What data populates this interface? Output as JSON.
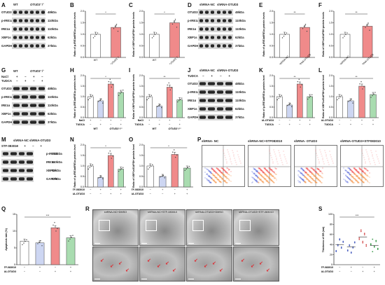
{
  "panel_letters": [
    "A",
    "B",
    "C",
    "D",
    "E",
    "F",
    "G",
    "H",
    "I",
    "J",
    "K",
    "L",
    "M",
    "N",
    "O",
    "P",
    "Q",
    "R",
    "S"
  ],
  "blots": {
    "A": {
      "headers": [
        "WT",
        "OTUD3⁻/⁻"
      ],
      "proteins": [
        "OTUD3",
        "p-IRE1α",
        "IRE1α",
        "XBP1s",
        "GAPDH"
      ],
      "kda": [
        "48kDa",
        "110kDa",
        "110kDa",
        "62kDa",
        "37kDa"
      ]
    },
    "D": {
      "headers": [
        "shRNA-NC",
        "shRNA-OTUD3"
      ],
      "proteins": [
        "OTUD3",
        "p-IRE1α",
        "IRE1α",
        "XBP1s",
        "GAPDH"
      ],
      "kda": [
        "48kDa",
        "110kDa",
        "110kDa",
        "62kDa",
        "37kDa"
      ]
    },
    "G": {
      "headers": [
        "WT",
        "OTUD3⁻/⁻"
      ],
      "cond_rows": [
        {
          "label": "NaCl",
          "values": [
            "+",
            "−",
            "+",
            "−"
          ]
        },
        {
          "label": "TUDCA",
          "values": [
            "−",
            "+",
            "−",
            "+"
          ]
        }
      ],
      "proteins": [
        "OTUD3",
        "p-IRE1α",
        "IRE1α",
        "XBP1s",
        "GAPDH"
      ],
      "kda": [
        "48kDa",
        "110kDa",
        "110kDa",
        "62kDa",
        "37kDa"
      ]
    },
    "J": {
      "headers": [
        "shRNA-NC",
        "shRNA-OTUD3"
      ],
      "cond_rows": [
        {
          "label": "TUDCA",
          "values": [
            "−",
            "+",
            "−",
            "+"
          ]
        }
      ],
      "proteins": [
        "OTUD3",
        "p-IRE1α",
        "IRE1α",
        "XBP1s",
        "GAPDH"
      ],
      "kda": [
        "48kDa",
        "110kDa",
        "110kDa",
        "62kDa",
        "37kDa"
      ]
    },
    "M": {
      "headers": [
        "shRNA-NC",
        "shRNA-OTUD3"
      ],
      "cond_rows": [
        {
          "label": "STF-083010",
          "values": [
            "−",
            "+",
            "−",
            "+"
          ]
        }
      ],
      "proteins": [
        "p-IRE1α",
        "IRE1α",
        "XBP1s",
        "GAPDH"
      ],
      "kda": [
        "110kDa",
        "110kDa",
        "62kDa",
        "37kDa"
      ]
    }
  },
  "chart_data": [
    {
      "id": "B",
      "type": "bar",
      "ylabel": "Ratio of p-IRE1α/IRE1α protein levels",
      "categories": [
        "WT",
        "OTUD3⁻/⁻"
      ],
      "values": [
        1.0,
        1.3
      ],
      "ylim": [
        0,
        2.0
      ],
      "yticks": [
        "0.0",
        "0.5",
        "1.0",
        "1.5",
        "2.0"
      ],
      "colors": [
        "#ffffff",
        "#f08a8a"
      ],
      "sig": "*",
      "cond_rows": []
    },
    {
      "id": "C",
      "type": "bar",
      "ylabel": "Ratio of XBP1s/GAPDH protein levels",
      "categories": [
        "WT",
        "OTUD3⁻/⁻"
      ],
      "values": [
        1.0,
        1.5
      ],
      "ylim": [
        0,
        2.0
      ],
      "yticks": [
        "0.0",
        "0.5",
        "1.0",
        "1.5",
        "2.0"
      ],
      "colors": [
        "#ffffff",
        "#f08a8a"
      ],
      "sig": "*",
      "cond_rows": []
    },
    {
      "id": "E",
      "type": "bar",
      "ylabel": "Ratio of p-IRE1α/IRE1α protein levels",
      "categories": [
        "shRNA-NC",
        "shRNA-OTUD3"
      ],
      "values": [
        1.0,
        1.3
      ],
      "ylim": [
        0,
        2.0
      ],
      "yticks": [
        "0.0",
        "0.5",
        "1.0",
        "1.5",
        "2.0"
      ],
      "colors": [
        "#ffffff",
        "#f08a8a"
      ],
      "sig": "**",
      "cond_rows": []
    },
    {
      "id": "F",
      "type": "bar",
      "ylabel": "Ratio of XBP1s/GAPDH protein levels",
      "categories": [
        "shRNA-NC",
        "shRNA-OTUD3"
      ],
      "values": [
        1.0,
        1.35
      ],
      "ylim": [
        0,
        2.0
      ],
      "yticks": [
        "0.0",
        "0.5",
        "1.0",
        "1.5",
        "2.0"
      ],
      "colors": [
        "#ffffff",
        "#f08a8a"
      ],
      "sig": "**",
      "cond_rows": []
    },
    {
      "id": "H",
      "type": "bar",
      "ylabel": "Ratio of p-IRE1α/IRE1α protein level",
      "categories": [
        "",
        "",
        "",
        ""
      ],
      "values": [
        1.0,
        0.8,
        1.6,
        1.2
      ],
      "ylim": [
        0,
        2.0
      ],
      "yticks": [
        "0.0",
        "0.5",
        "1.0",
        "1.5",
        "2.0"
      ],
      "colors": [
        "#ffffff",
        "#cdd6f2",
        "#f08a8a",
        "#a9dcb0"
      ],
      "sig": "*",
      "cond_rows": [
        {
          "label": "NaCl",
          "values": [
            "+",
            "−",
            "+",
            "−"
          ]
        },
        {
          "label": "TUDCA",
          "values": [
            "−",
            "+",
            "−",
            "+"
          ]
        }
      ],
      "group_labels": [
        "WT",
        "OTUD3⁻/⁻"
      ]
    },
    {
      "id": "I",
      "type": "bar",
      "ylabel": "Ratio of XBP1s/GAPDH protein levels",
      "categories": [
        "",
        "",
        "",
        ""
      ],
      "values": [
        1.0,
        0.55,
        1.45,
        0.85
      ],
      "ylim": [
        0,
        2.0
      ],
      "yticks": [
        "0.0",
        "0.5",
        "1.0",
        "1.5",
        "2.0"
      ],
      "colors": [
        "#ffffff",
        "#cdd6f2",
        "#f08a8a",
        "#a9dcb0"
      ],
      "sig": "**",
      "cond_rows": [
        {
          "label": "NaCl",
          "values": [
            "+",
            "−",
            "+",
            "−"
          ]
        },
        {
          "label": "TUDCA",
          "values": [
            "−",
            "+",
            "−",
            "+"
          ]
        }
      ],
      "group_labels": [
        "WT",
        "OTUD3⁻/⁻"
      ]
    },
    {
      "id": "K",
      "type": "bar",
      "ylabel": "Ratio of p-IRE1α/IRE1α protein level",
      "categories": [
        "",
        "",
        "",
        ""
      ],
      "values": [
        1.0,
        0.6,
        1.6,
        1.0
      ],
      "ylim": [
        0,
        2.0
      ],
      "yticks": [
        "0.0",
        "0.5",
        "1.0",
        "1.5",
        "2.0"
      ],
      "colors": [
        "#ffffff",
        "#cdd6f2",
        "#f08a8a",
        "#a9dcb0"
      ],
      "sig": "**",
      "cond_rows": [
        {
          "label": "shRNA-OTUD3",
          "values": [
            "−",
            "−",
            "+",
            "+"
          ]
        },
        {
          "label": "TUDCA",
          "values": [
            "−",
            "+",
            "−",
            "+"
          ]
        }
      ]
    },
    {
      "id": "L",
      "type": "bar",
      "ylabel": "Ratio of XBP1s/GAPDH protein level",
      "categories": [
        "",
        "",
        "",
        ""
      ],
      "values": [
        1.0,
        0.8,
        1.5,
        1.1
      ],
      "ylim": [
        0,
        2.0
      ],
      "yticks": [
        "0.0",
        "0.5",
        "1.0",
        "1.5",
        "2.0"
      ],
      "colors": [
        "#ffffff",
        "#cdd6f2",
        "#f08a8a",
        "#a9dcb0"
      ],
      "sig": "**",
      "cond_rows": [
        {
          "label": "shRNA-OTUD3",
          "values": [
            "−",
            "−",
            "+",
            "+"
          ]
        },
        {
          "label": "TUDCA",
          "values": [
            "−",
            "+",
            "−",
            "+"
          ]
        }
      ]
    },
    {
      "id": "N",
      "type": "bar",
      "ylabel": "Ratio of p-IRE1α/IRE1α protein level",
      "categories": [
        "",
        "",
        "",
        ""
      ],
      "values": [
        1.0,
        0.45,
        1.5,
        0.85
      ],
      "ylim": [
        0,
        2.0
      ],
      "yticks": [
        "0.0",
        "0.5",
        "1.0",
        "1.5",
        "2.0"
      ],
      "colors": [
        "#ffffff",
        "#cdd6f2",
        "#f08a8a",
        "#a9dcb0"
      ],
      "sig": "*",
      "cond_rows": [
        {
          "label": "STF-083010",
          "values": [
            "−",
            "+",
            "−",
            "+"
          ]
        },
        {
          "label": "shRNA-OTUD3",
          "values": [
            "−",
            "−",
            "+",
            "+"
          ]
        }
      ]
    },
    {
      "id": "O",
      "type": "bar",
      "ylabel": "Ratio of XBP1s/GAPDH protein level",
      "categories": [
        "",
        "",
        "",
        ""
      ],
      "values": [
        1.0,
        0.5,
        1.55,
        0.9
      ],
      "ylim": [
        0,
        2.0
      ],
      "yticks": [
        "0.0",
        "0.5",
        "1.0",
        "1.5",
        "2.0"
      ],
      "colors": [
        "#ffffff",
        "#cdd6f2",
        "#f08a8a",
        "#a9dcb0"
      ],
      "sig": "*",
      "cond_rows": [
        {
          "label": "STF-083010",
          "values": [
            "−",
            "+",
            "−",
            "+"
          ]
        },
        {
          "label": "shRNA-OTUD3",
          "values": [
            "−",
            "−",
            "+",
            "+"
          ]
        }
      ]
    },
    {
      "id": "Q",
      "type": "bar",
      "ylabel": "Apoptosis rate (%)",
      "categories": [
        "",
        "",
        "",
        ""
      ],
      "values": [
        7,
        6.5,
        11,
        8
      ],
      "ylim": [
        0,
        15
      ],
      "yticks": [
        "0",
        "5",
        "10",
        "15"
      ],
      "colors": [
        "#ffffff",
        "#cdd6f2",
        "#f08a8a",
        "#a9dcb0"
      ],
      "sig": "***",
      "cond_rows": [
        {
          "label": "STF-083010",
          "values": [
            "−",
            "+",
            "−",
            "+"
          ]
        },
        {
          "label": "shRNA-OTUD3",
          "values": [
            "−",
            "−",
            "+",
            "+"
          ]
        }
      ]
    },
    {
      "id": "S",
      "type": "scatter",
      "ylabel": "Thickness of ER (nm)",
      "categories": [
        "",
        "",
        "",
        ""
      ],
      "values": [
        40,
        35,
        55,
        38
      ],
      "ylim": [
        0,
        100
      ],
      "yticks": [
        "0",
        "20",
        "40",
        "60",
        "80",
        "100"
      ],
      "colors": [
        "#4a5fc0",
        "#4a5fc0",
        "#d04040",
        "#3a9a4a"
      ],
      "sig": "***",
      "cond_rows": [
        {
          "label": "STF-083010",
          "values": [
            "−",
            "+",
            "−",
            "+"
          ]
        },
        {
          "label": "shRNA-OTUD3",
          "values": [
            "−",
            "−",
            "+",
            "+"
          ]
        }
      ]
    }
  ],
  "flow": {
    "titles": [
      "shRNA- NC",
      "shRNA-NC+STF083010",
      "shRNA- OTUD3",
      "shRNA-OTUD3+STF083010"
    ],
    "axis_y": "PI",
    "axis_x": "FITC"
  },
  "em": {
    "labels": [
      "shRNA-NC+DMSO",
      "shRNA-NC+STF-083010",
      "shRNA-OTUD3+DMSO",
      "shRNA-OTUD3+STF-083010"
    ]
  }
}
